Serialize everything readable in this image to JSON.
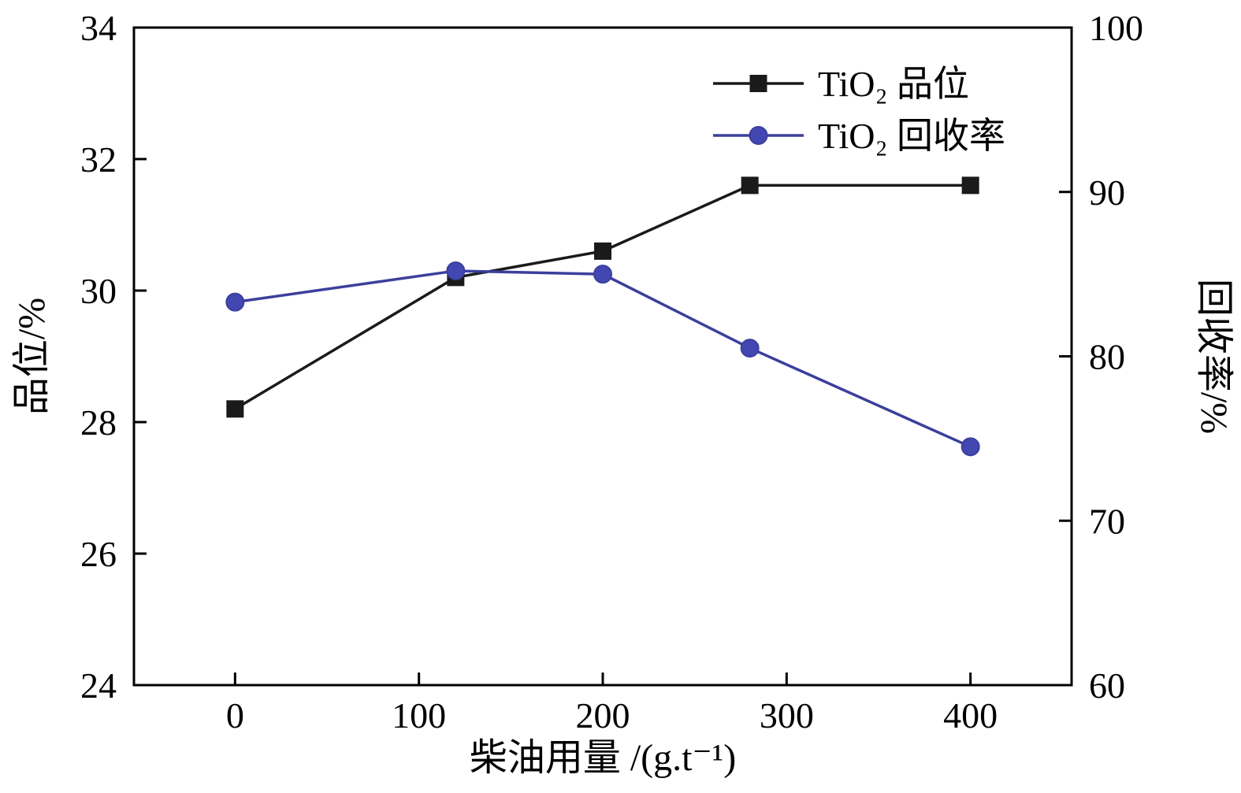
{
  "figure": {
    "background": "#ffffff",
    "frame_color": "#000000"
  },
  "chart_data": {
    "type": "line",
    "title": "",
    "xlabel": "柴油用量 /(g.t⁻¹)",
    "ylabel_left": "品位/%",
    "ylabel_right": "回收率/%",
    "xlim": [
      -55,
      455
    ],
    "ylim_left": [
      24,
      34
    ],
    "ylim_right": [
      60,
      100
    ],
    "x_ticks": [
      0,
      100,
      200,
      300,
      400
    ],
    "left_ticks": [
      24,
      26,
      28,
      30,
      32,
      34
    ],
    "right_ticks": [
      60,
      70,
      80,
      90,
      100
    ],
    "grid": false,
    "legend_position": "inside-top-right",
    "series": [
      {
        "name": "TiO₂ 品位",
        "axis": "left",
        "marker": "square",
        "color": "#1a1a1a",
        "marker_color": "#1a1a1a",
        "x": [
          0,
          120,
          200,
          280,
          400
        ],
        "values": [
          28.2,
          30.2,
          30.6,
          31.6,
          31.6
        ]
      },
      {
        "name": "TiO₂ 回收率",
        "axis": "right",
        "marker": "circle",
        "color": "#3c3f9d",
        "marker_color": "#4247b2",
        "x": [
          0,
          120,
          200,
          280,
          400
        ],
        "values": [
          83.3,
          85.2,
          85.0,
          80.5,
          74.5
        ]
      }
    ]
  }
}
